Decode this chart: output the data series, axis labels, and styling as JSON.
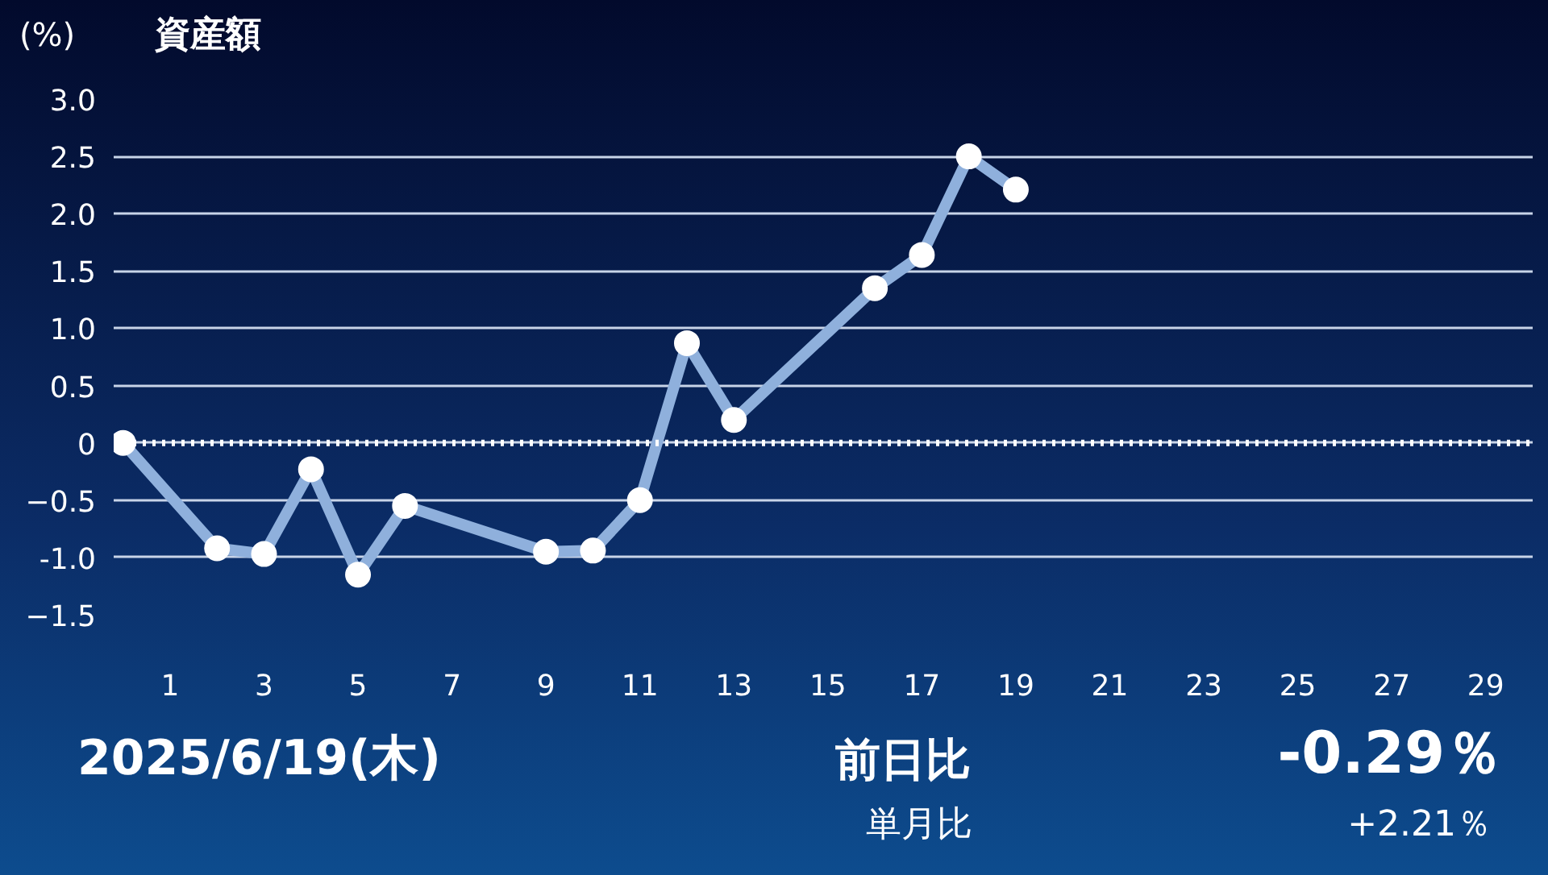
{
  "chart_data": {
    "type": "line",
    "title": "資産額",
    "ylabel": "(%)",
    "x": [
      0,
      2,
      3,
      4,
      5,
      6,
      9,
      10,
      11,
      12,
      13,
      16,
      17,
      18,
      19
    ],
    "series": [
      {
        "color": "#8fb0dc",
        "values": [
          0,
          -0.92,
          -0.97,
          -0.23,
          -1.15,
          -0.55,
          -0.95,
          -0.94,
          -0.5,
          0.87,
          0.2,
          1.35,
          1.64,
          2.5,
          2.21
        ]
      }
    ],
    "marker": "circle",
    "line_style": "solid",
    "grid": "y",
    "xlim": [
      -0.2,
      30
    ],
    "xticks": [
      1,
      3,
      5,
      7,
      9,
      11,
      13,
      15,
      17,
      19,
      21,
      23,
      25,
      27,
      29
    ],
    "ylim": [
      -1.5,
      3.0
    ],
    "yticks": [
      -1.5,
      {
        "value": -1,
        "label": "-1.0"
      },
      -0.5,
      0,
      0.5,
      {
        "value": 1,
        "label": "1.0"
      },
      1.5,
      {
        "value": 2,
        "label": "2.0"
      },
      2.5,
      {
        "value": 3,
        "label": "3.0"
      }
    ],
    "ref_lines": [
      {
        "axis": "y",
        "value": 0,
        "color": "#ffffff",
        "line_style": "dotted"
      }
    ],
    "annotations": [
      "2025/6/19(木)",
      "前日比",
      "-0.29％",
      "単月比",
      "+2.21％"
    ]
  }
}
